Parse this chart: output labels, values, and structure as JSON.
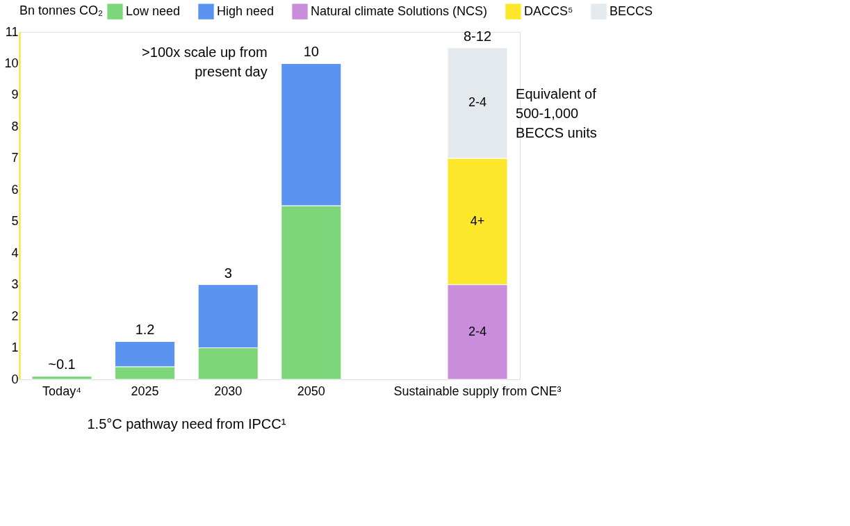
{
  "chart_data": {
    "type": "bar",
    "stacked": true,
    "categories": [
      "Today⁴",
      "2025",
      "2030",
      "2050",
      null,
      "Sustainable supply from CNE³"
    ],
    "series": [
      {
        "name": "Low need",
        "color": "#7dd67a",
        "values": [
          0.1,
          0.4,
          1.0,
          5.5,
          null,
          null
        ]
      },
      {
        "name": "High need",
        "color": "#5b93f0",
        "values": [
          null,
          0.8,
          2.0,
          4.5,
          null,
          null
        ]
      },
      {
        "name": "Natural climate Solutions (NCS)",
        "color": "#c98ddc",
        "values": [
          null,
          null,
          null,
          null,
          null,
          3.0
        ],
        "value_labels": [
          null,
          null,
          null,
          null,
          null,
          "2-4"
        ]
      },
      {
        "name": "DACCS⁵",
        "color": "#fce72a",
        "values": [
          null,
          null,
          null,
          null,
          null,
          4.0
        ],
        "value_labels": [
          null,
          null,
          null,
          null,
          null,
          "4+"
        ]
      },
      {
        "name": "BECCS",
        "color": "#e3e9ec",
        "values": [
          null,
          null,
          null,
          null,
          null,
          3.5
        ],
        "value_labels": [
          null,
          null,
          null,
          null,
          null,
          "2-4"
        ]
      }
    ],
    "totals": [
      "~0.1",
      "1.2",
      "3",
      "10",
      null,
      "8-12"
    ],
    "ylim": [
      0,
      11
    ],
    "yticks": [
      0,
      1,
      2,
      3,
      4,
      5,
      6,
      7,
      8,
      9,
      10,
      11
    ],
    "grid": false,
    "legend": "top",
    "legend_title": "Bn tonnes CO₂",
    "annotations": [
      ">100x scale up from present day",
      "Equivalent of 500-1,000 BECCS units",
      "1.5°C pathway need from IPCC¹"
    ]
  }
}
